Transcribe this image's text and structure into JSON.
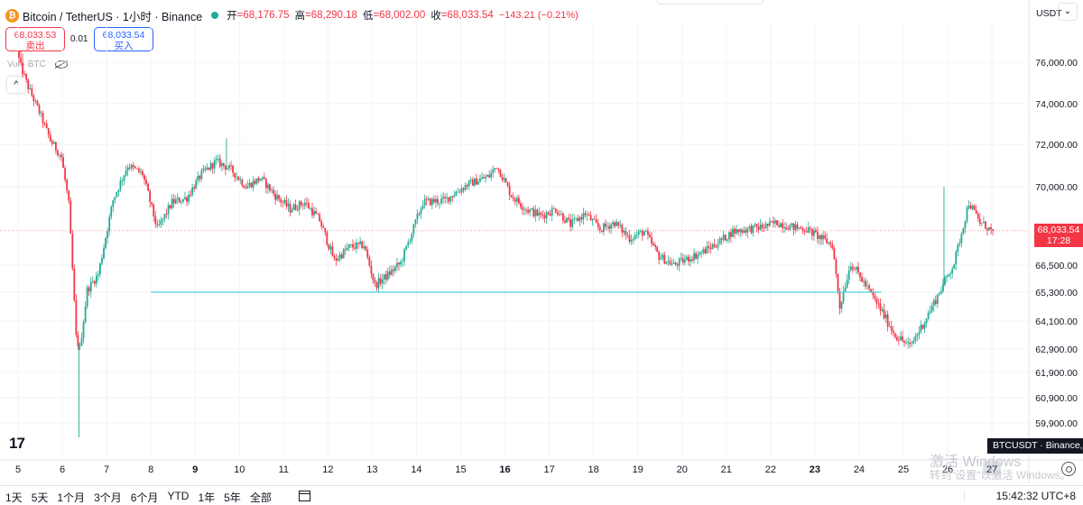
{
  "header": {
    "logo_glyph": "₿",
    "title": "Bitcoin / TetherUS · 1小时 · Binance",
    "status_color": "#22ab94",
    "ohlc": [
      {
        "key": "开",
        "value": "=68,176.75"
      },
      {
        "key": "高",
        "value": "=68,290.18"
      },
      {
        "key": "低",
        "value": "=68,002.00"
      },
      {
        "key": "收",
        "value": "=68,033.54"
      }
    ],
    "change": "−143.21 (−0.21%)"
  },
  "trade": {
    "sell_price": "68,033.53",
    "sell_label": "卖出",
    "spread": "0.01",
    "buy_price": "68,033.54",
    "buy_label": "买入"
  },
  "volume_label": "Vol · BTC",
  "collapse_glyph": "^",
  "currency": "USDT",
  "more_glyph": "⌄",
  "tv_logo": "17",
  "last_price": {
    "price": "68,033.54",
    "countdown": "17:28"
  },
  "symbol_badge": "BTCUSDT · Binance,",
  "watermark": {
    "line1": "激活 Windows",
    "line2": "转到\"设置\"以激活 Windows。"
  },
  "bottom_bar": {
    "periods": [
      "1天",
      "5天",
      "1个月",
      "3个月",
      "6个月",
      "YTD",
      "1年",
      "5年",
      "全部"
    ],
    "clock": "15:42:32 UTC+8"
  },
  "colors": {
    "up": "#22ab94",
    "down": "#f23645",
    "line": "#4dd0e1",
    "grid": "#f0f3fa",
    "axis_text": "#131722"
  },
  "chart_data": {
    "type": "candlestick",
    "symbol": "BTCUSDT",
    "interval": "1h",
    "y_ticks": [
      76000,
      74000,
      72000,
      70000,
      66500,
      65300,
      64100,
      62900,
      61900,
      60900,
      59900
    ],
    "y_tick_labels": [
      "76,000.00",
      "74,000.00",
      "72,000.00",
      "70,000.00",
      "66,500.00",
      "65,300.00",
      "64,100.00",
      "62,900.00",
      "61,900.00",
      "60,900.00",
      "59,900.00"
    ],
    "x_tick_labels": [
      "5",
      "6",
      "7",
      "8",
      "9",
      "10",
      "11",
      "12",
      "13",
      "14",
      "15",
      "16",
      "17",
      "18",
      "19",
      "20",
      "21",
      "22",
      "23",
      "24",
      "25",
      "26",
      "27"
    ],
    "x_bold_labels": [
      "9",
      "16",
      "23"
    ],
    "x_highlight_label": "27",
    "price_path": [
      [
        "5 00:00",
        76300
      ],
      [
        "5 06:00",
        74800
      ],
      [
        "5 12:00",
        73600
      ],
      [
        "5 18:00",
        72200
      ],
      [
        "6 00:00",
        71400
      ],
      [
        "6 04:00",
        69200
      ],
      [
        "6 08:00",
        63400
      ],
      [
        "6 10:00",
        62900
      ],
      [
        "6 14:00",
        65400
      ],
      [
        "6 20:00",
        66100
      ],
      [
        "7 04:00",
        69400
      ],
      [
        "7 12:00",
        71000
      ],
      [
        "7 20:00",
        70600
      ],
      [
        "8 04:00",
        68100
      ],
      [
        "8 12:00",
        69300
      ],
      [
        "8 20:00",
        69500
      ],
      [
        "9 04:00",
        70600
      ],
      [
        "9 12:00",
        71200
      ],
      [
        "9 20:00",
        70800
      ],
      [
        "10 04:00",
        70000
      ],
      [
        "10 12:00",
        70400
      ],
      [
        "10 20:00",
        69600
      ],
      [
        "11 04:00",
        69000
      ],
      [
        "11 12:00",
        69300
      ],
      [
        "11 20:00",
        68500
      ],
      [
        "12 04:00",
        66700
      ],
      [
        "12 12:00",
        67300
      ],
      [
        "12 20:00",
        67400
      ],
      [
        "13 02:00",
        65600
      ],
      [
        "13 08:00",
        66000
      ],
      [
        "13 16:00",
        66600
      ],
      [
        "14 04:00",
        69300
      ],
      [
        "14 16:00",
        69400
      ],
      [
        "15 04:00",
        70100
      ],
      [
        "15 16:00",
        70500
      ],
      [
        "15 20:00",
        71000
      ],
      [
        "16 04:00",
        69600
      ],
      [
        "16 12:00",
        69000
      ],
      [
        "16 20:00",
        68700
      ],
      [
        "17 04:00",
        69000
      ],
      [
        "17 12:00",
        68300
      ],
      [
        "17 20:00",
        68800
      ],
      [
        "18 04:00",
        68100
      ],
      [
        "18 12:00",
        68400
      ],
      [
        "18 20:00",
        67700
      ],
      [
        "19 04:00",
        68000
      ],
      [
        "19 12:00",
        66900
      ],
      [
        "19 20:00",
        66500
      ],
      [
        "20 04:00",
        66800
      ],
      [
        "20 12:00",
        67100
      ],
      [
        "20 20:00",
        67500
      ],
      [
        "21 04:00",
        68000
      ],
      [
        "21 12:00",
        68100
      ],
      [
        "21 20:00",
        68200
      ],
      [
        "22 04:00",
        68400
      ],
      [
        "22 12:00",
        68200
      ],
      [
        "22 20:00",
        68100
      ],
      [
        "23 04:00",
        67700
      ],
      [
        "23 10:00",
        67400
      ],
      [
        "23 14:00",
        64700
      ],
      [
        "23 20:00",
        66600
      ],
      [
        "24 04:00",
        65600
      ],
      [
        "24 12:00",
        64600
      ],
      [
        "24 20:00",
        63500
      ],
      [
        "25 04:00",
        63000
      ],
      [
        "25 12:00",
        64100
      ],
      [
        "25 20:00",
        65300
      ],
      [
        "26 04:00",
        66600
      ],
      [
        "26 12:00",
        69300
      ],
      [
        "26 18:00",
        68400
      ],
      [
        "26 22:00",
        68200
      ],
      [
        "27 00:00",
        68033
      ]
    ],
    "horizontal_line": {
      "value": 65300,
      "from": "8 00:00",
      "to": "24 12:00"
    },
    "last_price": 68033.54
  }
}
